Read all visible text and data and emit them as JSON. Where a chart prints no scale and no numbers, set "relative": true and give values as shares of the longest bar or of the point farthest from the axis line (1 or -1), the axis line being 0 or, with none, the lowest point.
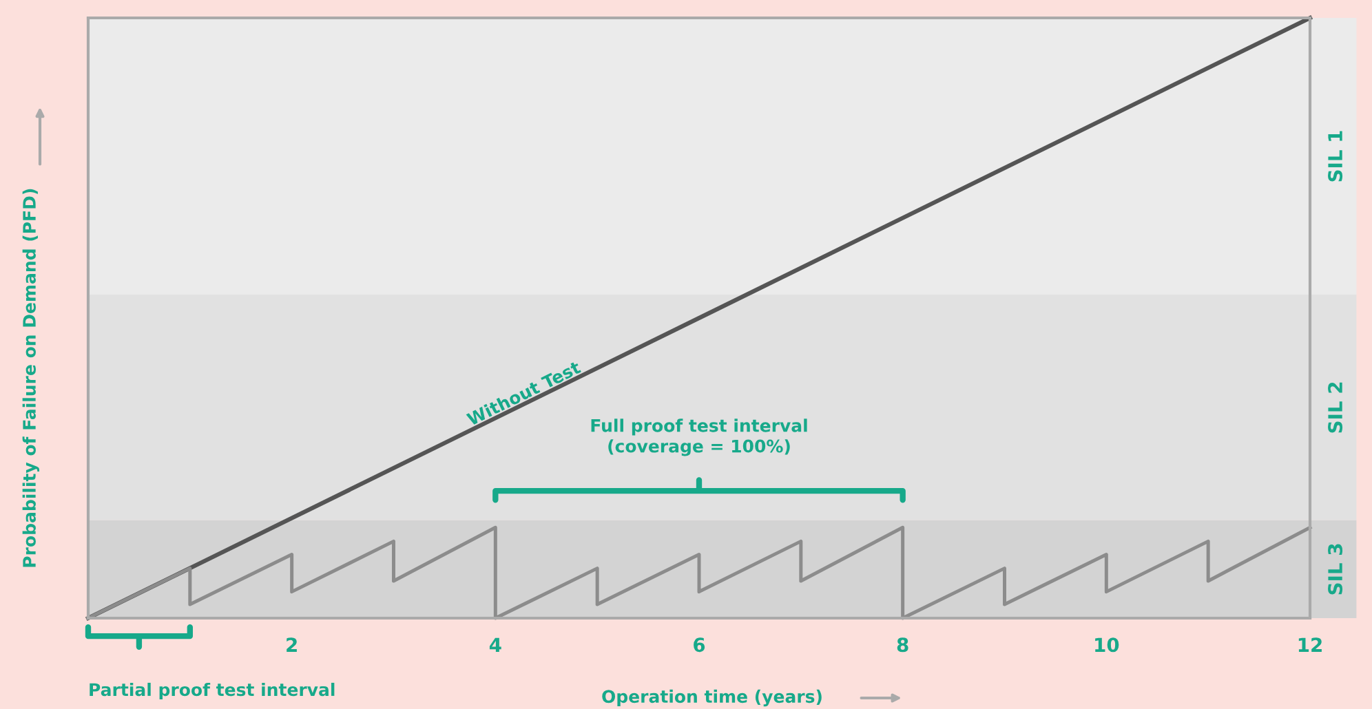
{
  "chart_data": {
    "type": "line",
    "relative": true,
    "xlabel": "Operation time (years)",
    "ylabel": "Probability of Failure on Demand (PFD)",
    "xlim": [
      0,
      12
    ],
    "xticks": [
      2,
      4,
      6,
      8,
      10,
      12
    ],
    "tick_labels": "x",
    "grid": false,
    "legend": false,
    "marker": "none",
    "line_style": "solid",
    "series": [
      {
        "name": "Without Test",
        "color": "#555555",
        "x": [
          0,
          12
        ],
        "values": [
          0,
          1
        ]
      },
      {
        "color": "#8c8c8c",
        "x": [
          0,
          1,
          1,
          2,
          2,
          3,
          3,
          4,
          4,
          5,
          5,
          6,
          6,
          7,
          7,
          8,
          8,
          9,
          9,
          10,
          10,
          11,
          11,
          12
        ],
        "values": [
          0,
          0.083,
          0.023,
          0.106,
          0.044,
          0.128,
          0.062,
          0.151,
          0,
          0.083,
          0.023,
          0.106,
          0.044,
          0.128,
          0.062,
          0.151,
          0,
          0.083,
          0.023,
          0.106,
          0.044,
          0.128,
          0.062,
          0.151
        ]
      }
    ],
    "bands": [
      {
        "axis": "y",
        "from": 0,
        "to": 0.163,
        "label": "SIL 3",
        "color": "#d3d3d3"
      },
      {
        "axis": "y",
        "from": 0.163,
        "to": 0.539,
        "label": "SIL 2",
        "color": "#e1e1e1"
      },
      {
        "axis": "y",
        "from": 0.539,
        "to": 1,
        "label": "SIL 1",
        "color": "#ebebeb"
      }
    ],
    "annotations": [
      "Full proof test interval\n(coverage = 100%)",
      "Partial proof test interval"
    ]
  }
}
